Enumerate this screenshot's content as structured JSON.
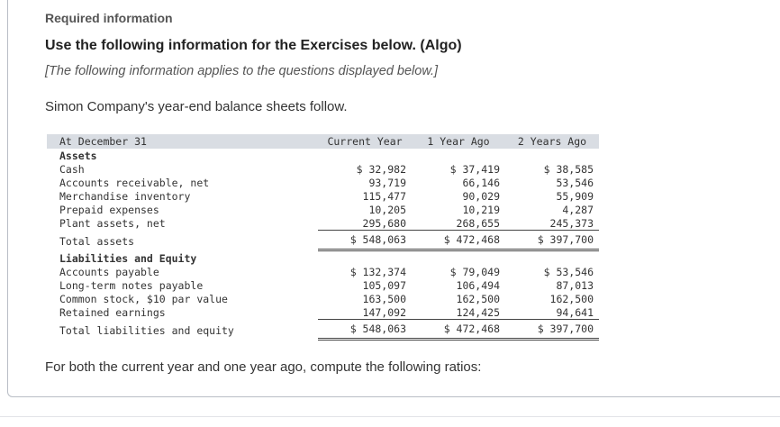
{
  "header": {
    "section": "Required information",
    "title": "Use the following information for the Exercises below. (Algo)",
    "note": "[The following information applies to the questions displayed below.]"
  },
  "intro": "Simon Company's year-end balance sheets follow.",
  "table": {
    "columns": [
      "At December 31",
      "Current Year",
      "1 Year Ago",
      "2 Years Ago"
    ],
    "rows": [
      [
        "Assets"
      ],
      [
        "Cash",
        "$ 32,982",
        "$ 37,419",
        "$ 38,585"
      ],
      [
        "Accounts receivable, net",
        "93,719",
        "66,146",
        "53,546"
      ],
      [
        "Merchandise inventory",
        "115,477",
        "90,029",
        "55,909"
      ],
      [
        "Prepaid expenses",
        "10,205",
        "10,219",
        "4,287"
      ],
      [
        "Plant assets, net",
        "295,680",
        "268,655",
        "245,373"
      ],
      [
        "Total assets",
        "$ 548,063",
        "$ 472,468",
        "$ 397,700"
      ],
      [
        "Liabilities and Equity"
      ],
      [
        "Accounts payable",
        "$ 132,374",
        "$ 79,049",
        "$ 53,546"
      ],
      [
        "Long-term notes payable",
        "105,097",
        "106,494",
        "87,013"
      ],
      [
        "Common stock, $10 par value",
        "163,500",
        "162,500",
        "162,500"
      ],
      [
        "Retained earnings",
        "147,092",
        "124,425",
        "94,641"
      ],
      [
        "Total liabilities and equity",
        "$ 548,063",
        "$ 472,468",
        "$ 397,700"
      ]
    ]
  },
  "footer": "For both the current year and one year ago, compute the following ratios:"
}
